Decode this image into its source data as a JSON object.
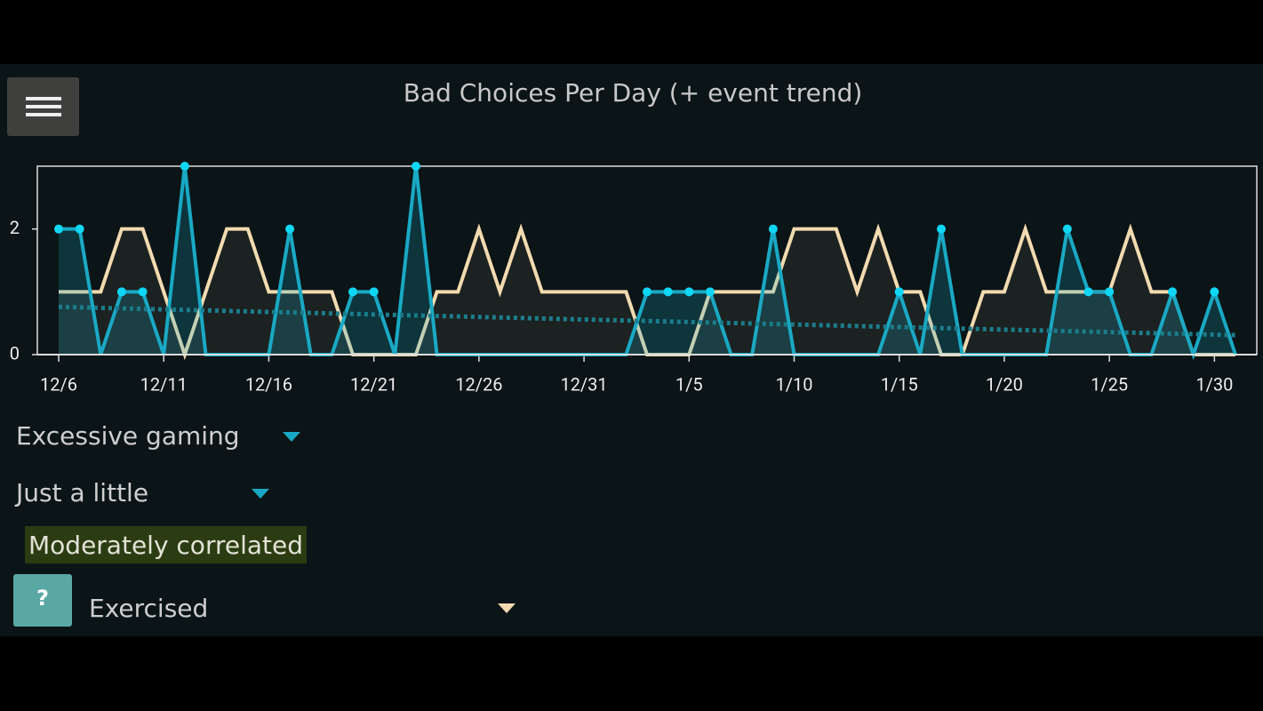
{
  "app": {
    "title": "Bad Choices Per Day (+ event trend)",
    "controls": {
      "amount": "Just a little",
      "correlation": "Moderately correlated",
      "help": "?"
    }
  },
  "chart_data": {
    "type": "line",
    "categories": [
      "12/6",
      null,
      null,
      null,
      null,
      "12/11",
      null,
      null,
      null,
      null,
      "12/16",
      null,
      null,
      null,
      null,
      "12/21",
      null,
      null,
      null,
      null,
      "12/26",
      null,
      null,
      null,
      null,
      "12/31",
      null,
      null,
      null,
      null,
      "1/5",
      null,
      null,
      null,
      null,
      "1/10",
      null,
      null,
      null,
      null,
      "1/15",
      null,
      null,
      null,
      null,
      "1/20",
      null,
      null,
      null,
      null,
      "1/25",
      null,
      null,
      null,
      null,
      "1/30",
      null
    ],
    "series": [
      {
        "name": "Excessive gaming",
        "color": "#1aa9c4",
        "values": [
          2,
          2,
          0,
          1,
          1,
          0,
          3,
          0,
          0,
          0,
          0,
          2,
          0,
          0,
          1,
          1,
          0,
          3,
          0,
          0,
          0,
          0,
          0,
          0,
          0,
          0,
          0,
          0,
          1,
          1,
          1,
          1,
          0,
          0,
          2,
          0,
          0,
          0,
          0,
          0,
          1,
          0,
          2,
          0,
          0,
          0,
          0,
          0,
          2,
          1,
          1,
          0,
          0,
          1,
          0,
          1,
          0
        ]
      },
      {
        "name": "Exercised",
        "color": "#f2dbb0",
        "values": [
          1,
          1,
          1,
          2,
          2,
          1,
          0,
          1,
          2,
          2,
          1,
          1,
          1,
          1,
          0,
          0,
          0,
          0,
          1,
          1,
          2,
          1,
          2,
          1,
          1,
          1,
          1,
          1,
          0,
          0,
          0,
          1,
          1,
          1,
          1,
          2,
          2,
          2,
          1,
          2,
          1,
          1,
          0,
          0,
          1,
          1,
          2,
          1,
          1,
          1,
          1,
          2,
          1,
          1,
          0,
          0,
          0
        ]
      }
    ],
    "trend": {
      "color": "#1b7d8c",
      "values": [
        0.76,
        0.31
      ]
    },
    "ylim": [
      0,
      3
    ],
    "yticks": [
      0,
      2
    ]
  }
}
